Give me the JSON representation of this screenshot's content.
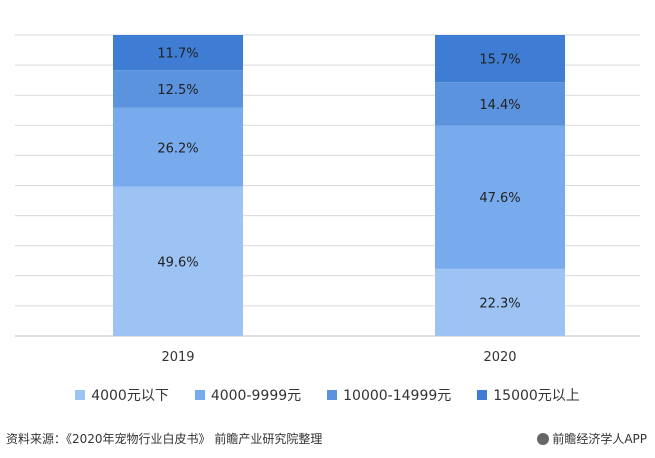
{
  "chart_data": {
    "type": "bar",
    "stacked": true,
    "categories": [
      "2019",
      "2020"
    ],
    "series": [
      {
        "name": "4000元以下",
        "values": [
          49.6,
          22.3
        ],
        "labels": [
          "49.6%",
          "22.3%"
        ],
        "color": "#9DC3F5"
      },
      {
        "name": "4000-9999元",
        "values": [
          26.2,
          47.6
        ],
        "labels": [
          "26.2%",
          "47.6%"
        ],
        "color": "#78ABEE"
      },
      {
        "name": "10000-14999元",
        "values": [
          12.5,
          14.4
        ],
        "labels": [
          "12.5%",
          "14.4%"
        ],
        "color": "#5B93DE"
      },
      {
        "name": "15000元以上",
        "values": [
          11.7,
          15.7
        ],
        "labels": [
          "11.7%",
          "15.7%"
        ],
        "color": "#3F7DD4"
      }
    ],
    "ylim": [
      0,
      100
    ],
    "grid": true,
    "legend_position": "bottom"
  },
  "footer": {
    "source": "资料来源：《2020年宠物行业白皮书》 前瞻产业研究院整理",
    "brand": "前瞻经济学人APP"
  },
  "colors": {
    "gridline": "#D9D9D9",
    "axis": "#BFBFBF"
  }
}
